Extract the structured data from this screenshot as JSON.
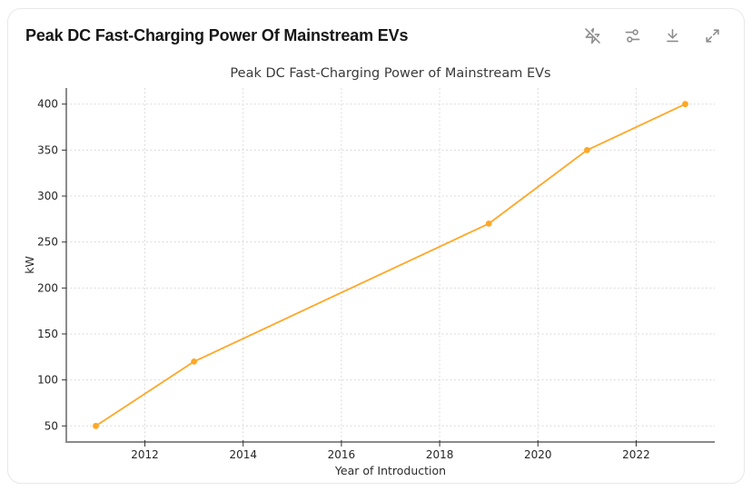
{
  "header": {
    "title": "Peak DC Fast-Charging Power Of Mainstream EVs"
  },
  "toolbar": {
    "icons": [
      {
        "name": "zap-off-icon"
      },
      {
        "name": "sliders-icon"
      },
      {
        "name": "download-icon"
      },
      {
        "name": "expand-icon"
      }
    ]
  },
  "chart_data": {
    "type": "line",
    "title": "Peak DC Fast-Charging Power of Mainstream EVs",
    "xlabel": "Year of Introduction",
    "ylabel": "kW",
    "x": [
      2011,
      2013,
      2019,
      2021,
      2023
    ],
    "y": [
      50,
      120,
      270,
      350,
      400
    ],
    "xlim": [
      2010.4,
      2023.6
    ],
    "ylim": [
      32.5,
      417.5
    ],
    "xticks": [
      2012,
      2014,
      2016,
      2018,
      2020,
      2022
    ],
    "yticks": [
      50,
      100,
      150,
      200,
      250,
      300,
      350,
      400
    ],
    "grid": true,
    "legend": false,
    "line_color": "#FFA726",
    "marker": "circle",
    "marker_color": "#FFA726"
  },
  "colors": {
    "card_border": "#e8e8ea",
    "icon_gray": "#8e8e8e",
    "grid_line": "#dadada",
    "left_spine": "#3f3f3f",
    "bottom_spine": "#8a8a8a",
    "tick_text": "#262626",
    "title_text": "#171717"
  }
}
